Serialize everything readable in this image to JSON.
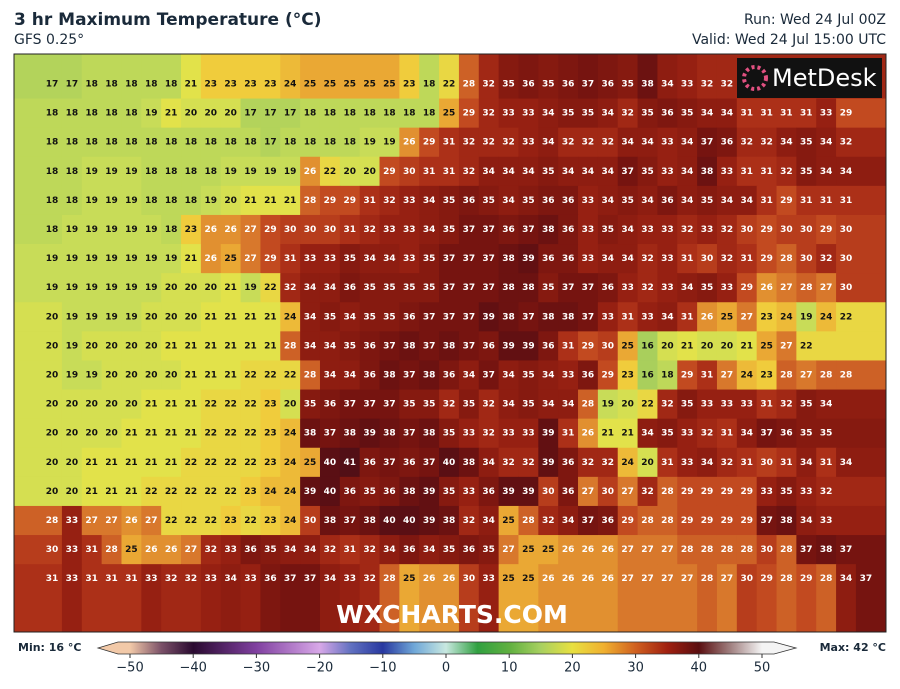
{
  "header": {
    "title": "3 hr Maximum Temperature (°C)",
    "model": "GFS 0.25°",
    "run": "Run: Wed 24 Jul 00Z",
    "valid": "Valid: Wed 24 Jul 15:00 UTC"
  },
  "logo": "MetDesk",
  "watermark": "WXCHARTS.COM",
  "grid_values": [
    [
      17,
      17,
      18,
      18,
      18,
      18,
      18,
      21,
      23,
      23,
      23,
      23,
      24,
      25,
      25,
      25,
      25,
      25,
      23,
      18,
      22,
      28,
      32,
      35,
      36,
      35,
      36,
      37,
      36,
      35,
      38,
      34,
      33,
      32,
      32
    ],
    [
      18,
      18,
      18,
      18,
      18,
      19,
      21,
      20,
      20,
      20,
      17,
      17,
      17,
      18,
      18,
      18,
      18,
      18,
      18,
      18,
      25,
      29,
      32,
      33,
      33,
      34,
      35,
      35,
      34,
      32,
      35,
      36,
      35,
      34,
      34,
      31,
      31,
      31,
      31,
      33,
      29
    ],
    [
      18,
      18,
      18,
      18,
      18,
      18,
      18,
      18,
      18,
      18,
      18,
      17,
      18,
      18,
      18,
      18,
      19,
      19,
      26,
      29,
      31,
      32,
      32,
      32,
      33,
      34,
      32,
      32,
      32,
      34,
      34,
      33,
      34,
      37,
      36,
      32,
      32,
      34,
      35,
      34,
      32
    ],
    [
      18,
      18,
      19,
      19,
      19,
      18,
      18,
      18,
      18,
      19,
      19,
      19,
      19,
      26,
      22,
      20,
      20,
      29,
      30,
      31,
      31,
      32,
      34,
      34,
      34,
      35,
      34,
      34,
      34,
      37,
      35,
      33,
      34,
      38,
      33,
      31,
      31,
      32,
      35,
      34,
      34
    ],
    [
      18,
      18,
      19,
      19,
      19,
      18,
      18,
      18,
      19,
      20,
      21,
      21,
      21,
      28,
      29,
      29,
      31,
      32,
      33,
      34,
      35,
      36,
      35,
      34,
      35,
      36,
      36,
      33,
      34,
      35,
      34,
      36,
      34,
      35,
      34,
      34,
      31,
      29,
      31,
      31,
      31
    ],
    [
      18,
      19,
      19,
      19,
      19,
      19,
      18,
      23,
      26,
      26,
      27,
      29,
      30,
      30,
      30,
      31,
      32,
      33,
      33,
      34,
      35,
      37,
      37,
      36,
      37,
      38,
      36,
      33,
      35,
      34,
      33,
      33,
      32,
      33,
      32,
      30,
      29,
      30,
      30,
      29,
      30
    ],
    [
      19,
      19,
      19,
      19,
      19,
      19,
      19,
      21,
      26,
      25,
      27,
      29,
      31,
      33,
      33,
      35,
      34,
      34,
      33,
      35,
      37,
      37,
      37,
      38,
      39,
      36,
      36,
      33,
      34,
      34,
      32,
      33,
      31,
      30,
      32,
      31,
      29,
      28,
      30,
      32,
      30
    ],
    [
      19,
      19,
      19,
      19,
      19,
      19,
      20,
      20,
      20,
      21,
      19,
      22,
      32,
      34,
      34,
      36,
      35,
      35,
      35,
      35,
      37,
      37,
      37,
      38,
      38,
      35,
      37,
      37,
      36,
      33,
      32,
      33,
      34,
      35,
      33,
      29,
      26,
      27,
      28,
      27,
      30
    ],
    [
      20,
      19,
      19,
      19,
      19,
      20,
      20,
      20,
      21,
      21,
      21,
      21,
      24,
      34,
      35,
      34,
      35,
      35,
      36,
      37,
      37,
      37,
      39,
      38,
      37,
      38,
      38,
      37,
      33,
      31,
      33,
      34,
      31,
      26,
      25,
      27,
      23,
      24,
      19,
      24,
      22
    ],
    [
      20,
      19,
      20,
      20,
      20,
      20,
      21,
      21,
      21,
      21,
      21,
      21,
      28,
      34,
      34,
      35,
      36,
      37,
      38,
      37,
      38,
      37,
      36,
      39,
      39,
      36,
      31,
      29,
      30,
      25,
      16,
      20,
      21,
      20,
      20,
      21,
      25,
      27,
      22
    ],
    [
      20,
      19,
      19,
      20,
      20,
      20,
      20,
      21,
      21,
      21,
      22,
      22,
      22,
      28,
      34,
      34,
      36,
      38,
      37,
      38,
      36,
      34,
      37,
      34,
      35,
      34,
      33,
      36,
      29,
      23,
      16,
      18,
      29,
      31,
      27,
      24,
      23,
      28,
      27,
      28,
      28
    ],
    [
      20,
      20,
      20,
      20,
      20,
      21,
      21,
      21,
      22,
      22,
      22,
      23,
      20,
      35,
      36,
      37,
      37,
      37,
      35,
      35,
      32,
      35,
      32,
      34,
      35,
      34,
      34,
      28,
      19,
      20,
      22,
      32,
      35,
      33,
      33,
      33,
      31,
      32,
      35,
      34
    ],
    [
      20,
      20,
      20,
      20,
      21,
      21,
      21,
      21,
      22,
      22,
      22,
      23,
      24,
      38,
      37,
      38,
      39,
      38,
      37,
      38,
      35,
      33,
      32,
      33,
      33,
      39,
      31,
      26,
      21,
      21,
      34,
      35,
      33,
      32,
      31,
      34,
      37,
      36,
      35,
      35
    ],
    [
      20,
      20,
      21,
      21,
      21,
      21,
      21,
      22,
      22,
      22,
      22,
      23,
      24,
      25,
      40,
      41,
      36,
      37,
      36,
      37,
      40,
      38,
      34,
      32,
      32,
      39,
      36,
      32,
      32,
      24,
      20,
      31,
      33,
      34,
      32,
      31,
      30,
      31,
      34,
      31,
      34
    ],
    [
      20,
      20,
      21,
      21,
      21,
      22,
      22,
      22,
      22,
      22,
      23,
      24,
      24,
      39,
      40,
      36,
      35,
      36,
      38,
      39,
      35,
      33,
      36,
      39,
      39,
      30,
      36,
      27,
      30,
      27,
      32,
      28,
      29,
      29,
      29,
      29,
      33,
      35,
      33,
      32
    ],
    [
      28,
      33,
      27,
      27,
      26,
      27,
      22,
      22,
      22,
      23,
      22,
      23,
      24,
      30,
      38,
      37,
      38,
      40,
      40,
      39,
      38,
      32,
      34,
      25,
      28,
      32,
      34,
      37,
      36,
      29,
      28,
      28,
      29,
      29,
      29,
      29,
      37,
      38,
      34,
      33
    ],
    [
      30,
      33,
      31,
      28,
      25,
      26,
      26,
      27,
      32,
      33,
      36,
      35,
      34,
      34,
      32,
      31,
      32,
      34,
      36,
      34,
      35,
      36,
      35,
      27,
      25,
      25,
      26,
      26,
      26,
      27,
      27,
      27,
      28,
      28,
      28,
      28,
      30,
      28,
      37,
      38,
      37
    ],
    [
      31,
      33,
      31,
      31,
      31,
      33,
      32,
      32,
      33,
      34,
      33,
      36,
      37,
      37,
      34,
      33,
      32,
      28,
      25,
      26,
      26,
      30,
      33,
      25,
      25,
      26,
      26,
      26,
      26,
      27,
      27,
      27,
      27,
      28,
      27,
      30,
      29,
      28,
      29,
      28,
      34,
      37
    ]
  ],
  "legend": {
    "min_label": "Min: 16 °C",
    "max_label": "Max: 42 °C",
    "ticks": [
      {
        "value": -50,
        "label": "−50"
      },
      {
        "value": -40,
        "label": "−40"
      },
      {
        "value": -30,
        "label": "−30"
      },
      {
        "value": -20,
        "label": "−20"
      },
      {
        "value": -10,
        "label": "−10"
      },
      0,
      10,
      20,
      30,
      40,
      50
    ]
  }
}
